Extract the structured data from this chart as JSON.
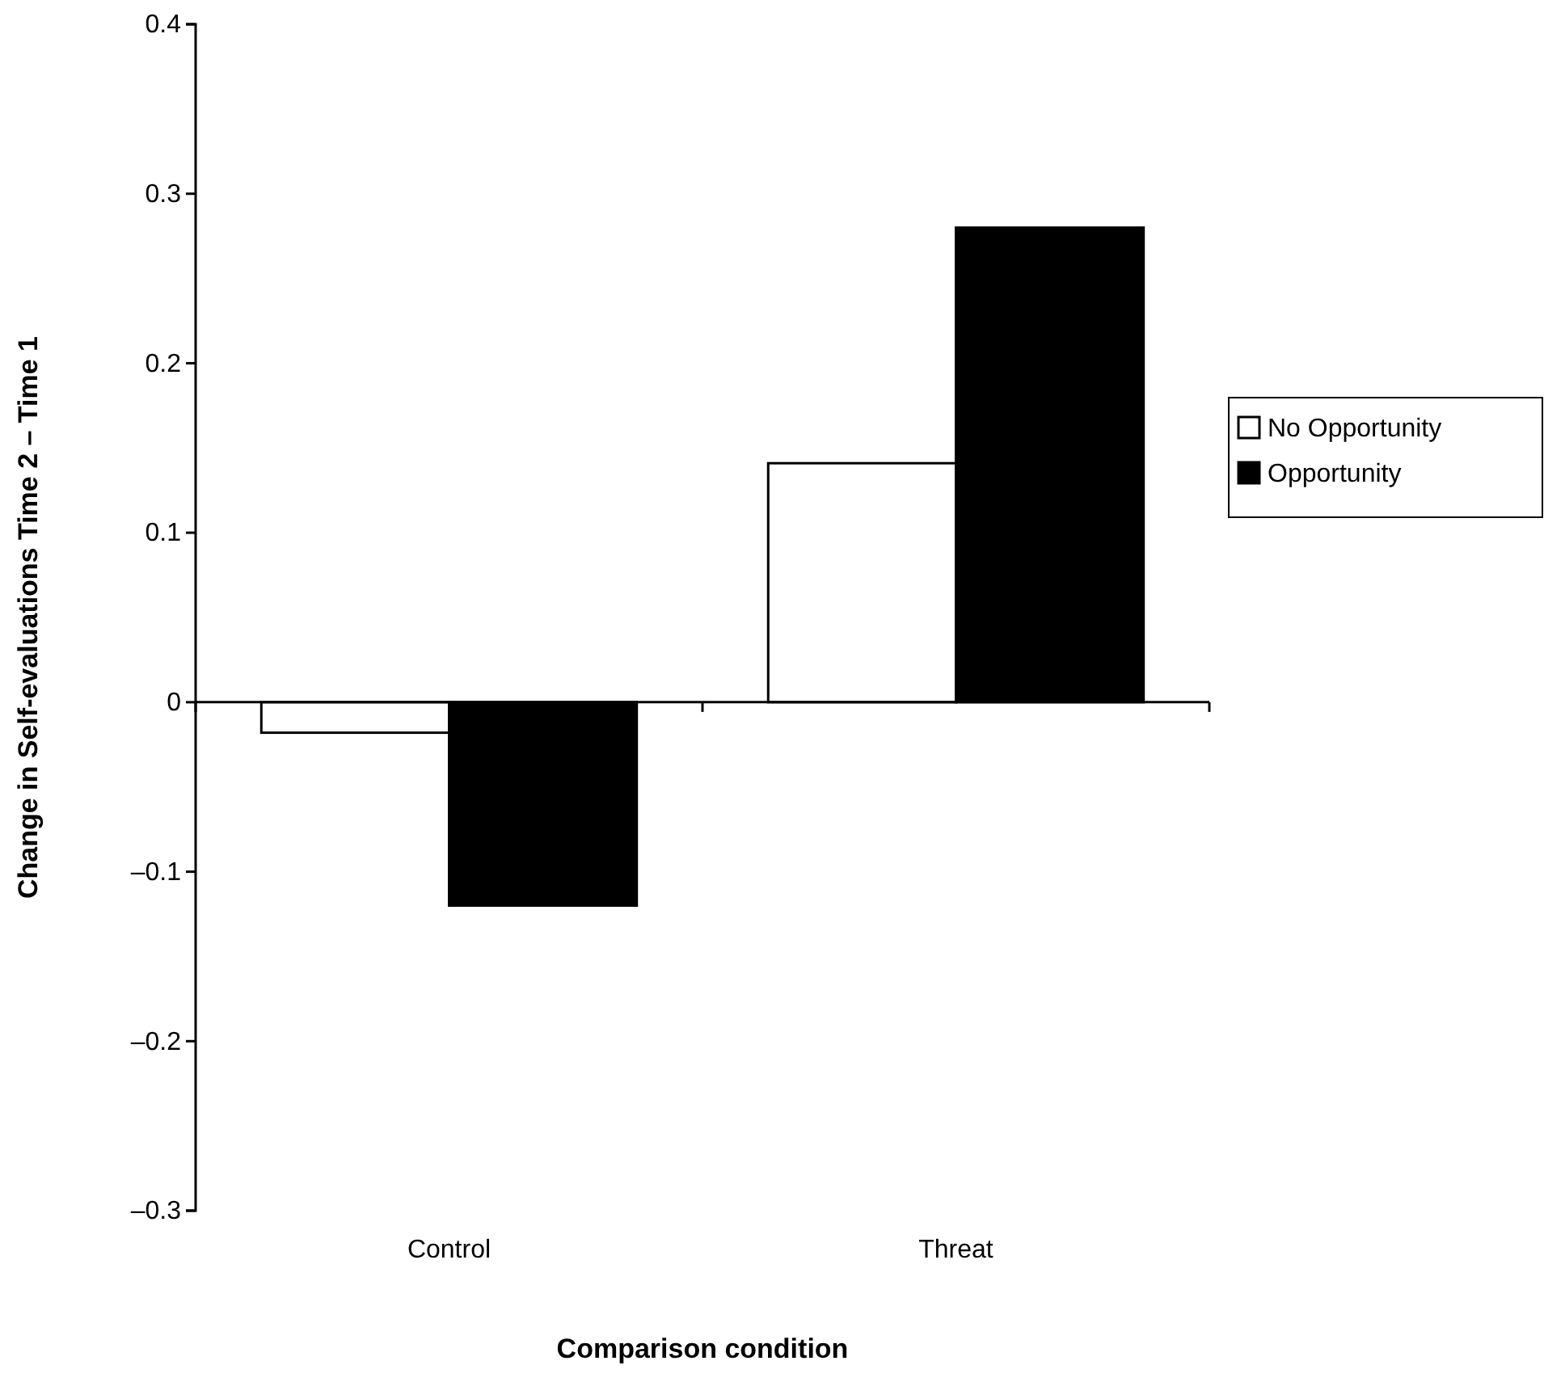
{
  "chart_data": {
    "type": "bar",
    "xlabel": "Comparison condition",
    "ylabel": "Change in Self-evaluations Time 2 – Time 1",
    "categories": [
      "Control",
      "Threat"
    ],
    "series": [
      {
        "name": "No Opportunity",
        "color": "#ffffff",
        "values": [
          -0.018,
          0.141
        ]
      },
      {
        "name": "Opportunity",
        "color": "#000000",
        "values": [
          -0.12,
          0.28
        ]
      }
    ],
    "ylim": [
      -0.3,
      0.4
    ],
    "yticks": [
      {
        "value": -0.3,
        "label": "–0.3"
      },
      {
        "value": -0.2,
        "label": "–0.2"
      },
      {
        "value": -0.1,
        "label": "–0.1"
      },
      0,
      0.1,
      0.2,
      0.3,
      0.4
    ],
    "legend": "right"
  }
}
